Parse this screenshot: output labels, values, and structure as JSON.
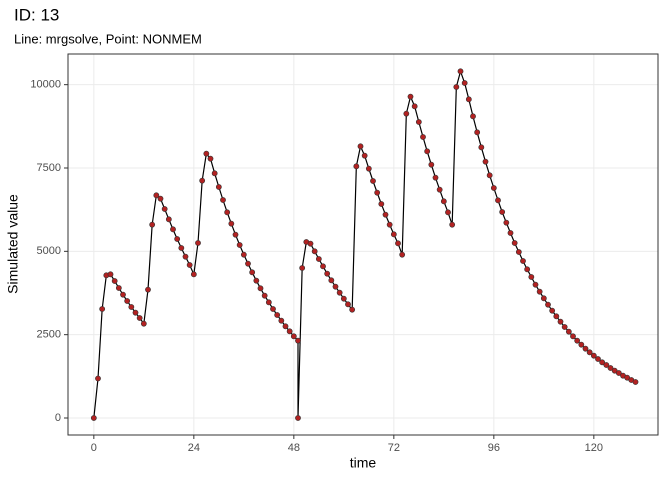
{
  "chart_data": {
    "type": "line",
    "title": "ID: 13",
    "subtitle": "Line: mrgsolve, Point: NONMEM",
    "x_label": "time",
    "y_label": "Simulated value",
    "x": [
      0,
      1,
      2,
      3,
      4,
      5,
      6,
      7,
      8,
      9,
      10,
      11,
      12,
      13,
      14,
      15,
      16,
      17,
      18,
      19,
      20,
      21,
      22,
      23,
      24,
      25,
      26,
      27,
      28,
      29,
      30,
      31,
      32,
      33,
      34,
      35,
      36,
      37,
      38,
      39,
      40,
      41,
      42,
      43,
      44,
      45,
      46,
      47,
      48,
      49,
      49,
      50,
      51,
      52,
      53,
      54,
      55,
      56,
      57,
      58,
      59,
      60,
      61,
      62,
      63,
      64,
      65,
      66,
      67,
      68,
      69,
      70,
      71,
      72,
      73,
      74,
      75,
      76,
      77,
      78,
      79,
      80,
      81,
      82,
      83,
      84,
      85,
      86,
      87,
      88,
      89,
      90,
      91,
      92,
      93,
      94,
      95,
      96,
      97,
      98,
      99,
      100,
      101,
      102,
      103,
      104,
      105,
      106,
      107,
      108,
      109,
      110,
      111,
      112,
      113,
      114,
      115,
      116,
      117,
      118,
      119,
      120,
      121,
      122,
      123,
      124,
      125,
      126,
      127,
      128,
      129,
      130
    ],
    "values": [
      0,
      1185,
      3270,
      4280,
      4310,
      4110,
      3900,
      3700,
      3510,
      3330,
      3160,
      3000,
      2830,
      3850,
      5800,
      6680,
      6580,
      6270,
      5960,
      5660,
      5370,
      5100,
      4840,
      4590,
      4310,
      5250,
      7120,
      7930,
      7780,
      7340,
      6930,
      6540,
      6170,
      5830,
      5500,
      5190,
      4900,
      4630,
      4370,
      4120,
      3890,
      3670,
      3470,
      3270,
      3090,
      2920,
      2750,
      2600,
      2450,
      2320,
      0,
      4500,
      5280,
      5230,
      5000,
      4770,
      4550,
      4330,
      4130,
      3940,
      3760,
      3580,
      3410,
      3250,
      7550,
      8150,
      7870,
      7480,
      7110,
      6760,
      6420,
      6100,
      5800,
      5510,
      5240,
      4900,
      9130,
      9640,
      9350,
      8880,
      8430,
      8000,
      7600,
      7210,
      6850,
      6500,
      6170,
      5800,
      9930,
      10400,
      10050,
      9560,
      9050,
      8570,
      8120,
      7690,
      7280,
      6900,
      6530,
      6180,
      5860,
      5550,
      5250,
      4980,
      4710,
      4460,
      4230,
      4000,
      3790,
      3590,
      3400,
      3220,
      3050,
      2890,
      2730,
      2590,
      2450,
      2320,
      2200,
      2080,
      1970,
      1870,
      1770,
      1670,
      1590,
      1500,
      1420,
      1350,
      1270,
      1210,
      1140,
      1080
    ],
    "line_color": "#000000",
    "point_color": "#b22222",
    "xlim": [
      -6.2,
      135.4
    ],
    "ylim": [
      -510,
      10920
    ],
    "xticks": [
      0,
      24,
      48,
      72,
      96,
      120
    ],
    "yticks": [
      0,
      2500,
      5000,
      7500,
      10000
    ],
    "grid": true
  }
}
